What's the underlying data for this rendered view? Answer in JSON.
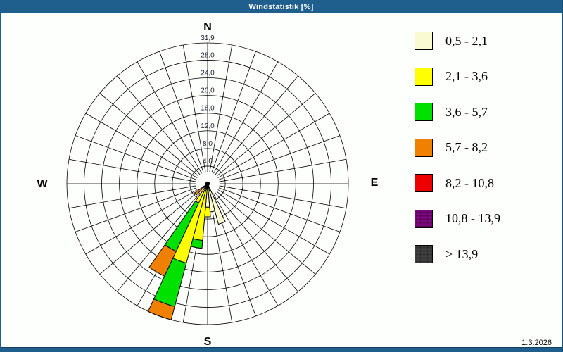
{
  "window": {
    "title": "Windstatistik [%]",
    "date": "1.3.2026"
  },
  "compass": {
    "n": "N",
    "e": "E",
    "s": "S",
    "w": "W"
  },
  "legend": [
    {
      "label": "0,5 - 2,1",
      "color": "#fafad2",
      "dotted": false
    },
    {
      "label": "2,1 - 3,6",
      "color": "#ffff00",
      "dotted": false
    },
    {
      "label": "3,6 - 5,7",
      "color": "#00e100",
      "dotted": false
    },
    {
      "label": "5,7 - 8,2",
      "color": "#f08000",
      "dotted": false
    },
    {
      "label": "8,2 - 10,8",
      "color": "#ee0000",
      "dotted": false
    },
    {
      "label": "10,8 - 13,9",
      "color": "#7c067c",
      "dotted": true
    },
    {
      "label": "> 13,9",
      "color": "#3f3f3f",
      "dotted": true
    }
  ],
  "chart_data": {
    "type": "windrose-stacked-bar",
    "units": "%",
    "sector_width_deg": 10,
    "grid": {
      "ring_values": [
        4,
        8,
        12,
        16,
        20,
        24,
        28,
        31.9
      ],
      "radial_step_deg": 10,
      "inner_hole_value": 2.7
    },
    "ring_labels": [
      {
        "value": 4,
        "text": "4,0"
      },
      {
        "value": 8,
        "text": "8,0"
      },
      {
        "value": 12,
        "text": "12,0"
      },
      {
        "value": 16,
        "text": "16,0"
      },
      {
        "value": 20,
        "text": "20,0"
      },
      {
        "value": 24,
        "text": "24,0"
      },
      {
        "value": 28,
        "text": "28,0"
      },
      {
        "value": 31.9,
        "text": "31,9"
      }
    ],
    "speed_bins": [
      "0,5 - 2,1",
      "2,1 - 3,6",
      "3,6 - 5,7",
      "5,7 - 8,2",
      "8,2 - 10,8",
      "10,8 - 13,9",
      "> 13,9"
    ],
    "max_value": 31.9,
    "bars": [
      {
        "direction_deg": 160,
        "segments": [
          {
            "bin": "0,5 - 2,1",
            "color": "#fafad2",
            "from": 0,
            "to": 9.5
          }
        ]
      },
      {
        "direction_deg": 170,
        "segments": [
          {
            "bin": "0,5 - 2,1",
            "color": "#fafad2",
            "from": 0,
            "to": 6.4
          }
        ]
      },
      {
        "direction_deg": 180,
        "segments": [
          {
            "bin": "0,5 - 2,1",
            "color": "#fafad2",
            "from": 0,
            "to": 5.3
          },
          {
            "bin": "2,1 - 3,6",
            "color": "#ffff00",
            "from": 5.3,
            "to": 7.5
          }
        ]
      },
      {
        "direction_deg": 190,
        "segments": [
          {
            "bin": "0,5 - 2,1",
            "color": "#fafad2",
            "from": 0,
            "to": 1.3
          },
          {
            "bin": "2,1 - 3,6",
            "color": "#ffff00",
            "from": 1.3,
            "to": 12.9
          },
          {
            "bin": "3,6 - 5,7",
            "color": "#00e100",
            "from": 12.9,
            "to": 14.7
          }
        ]
      },
      {
        "direction_deg": 200,
        "segments": [
          {
            "bin": "0,5 - 2,1",
            "color": "#fafad2",
            "from": 0,
            "to": 1.0
          },
          {
            "bin": "2,1 - 3,6",
            "color": "#ffff00",
            "from": 1.0,
            "to": 18.6
          },
          {
            "bin": "3,6 - 5,7",
            "color": "#00e100",
            "from": 18.6,
            "to": 28.8
          },
          {
            "bin": "5,7 - 8,2",
            "color": "#f08000",
            "from": 28.8,
            "to": 31.9
          }
        ]
      },
      {
        "direction_deg": 210,
        "segments": [
          {
            "bin": "0,5 - 2,1",
            "color": "#fafad2",
            "from": 0,
            "to": 0.8
          },
          {
            "bin": "2,1 - 3,6",
            "color": "#ffff00",
            "from": 0.8,
            "to": 4.8
          },
          {
            "bin": "3,6 - 5,7",
            "color": "#00e100",
            "from": 4.8,
            "to": 16.9
          },
          {
            "bin": "5,7 - 8,2",
            "color": "#f08000",
            "from": 16.9,
            "to": 23.1
          }
        ]
      },
      {
        "direction_deg": 230,
        "segments": [
          {
            "bin": "0,5 - 2,1",
            "color": "#fafad2",
            "from": 0,
            "to": 0.4
          },
          {
            "bin": "2,1 - 3,6",
            "color": "#ffff00",
            "from": 0.4,
            "to": 1.0
          },
          {
            "bin": "5,7 - 8,2",
            "color": "#f08000",
            "from": 1.0,
            "to": 3.6
          }
        ]
      }
    ]
  }
}
